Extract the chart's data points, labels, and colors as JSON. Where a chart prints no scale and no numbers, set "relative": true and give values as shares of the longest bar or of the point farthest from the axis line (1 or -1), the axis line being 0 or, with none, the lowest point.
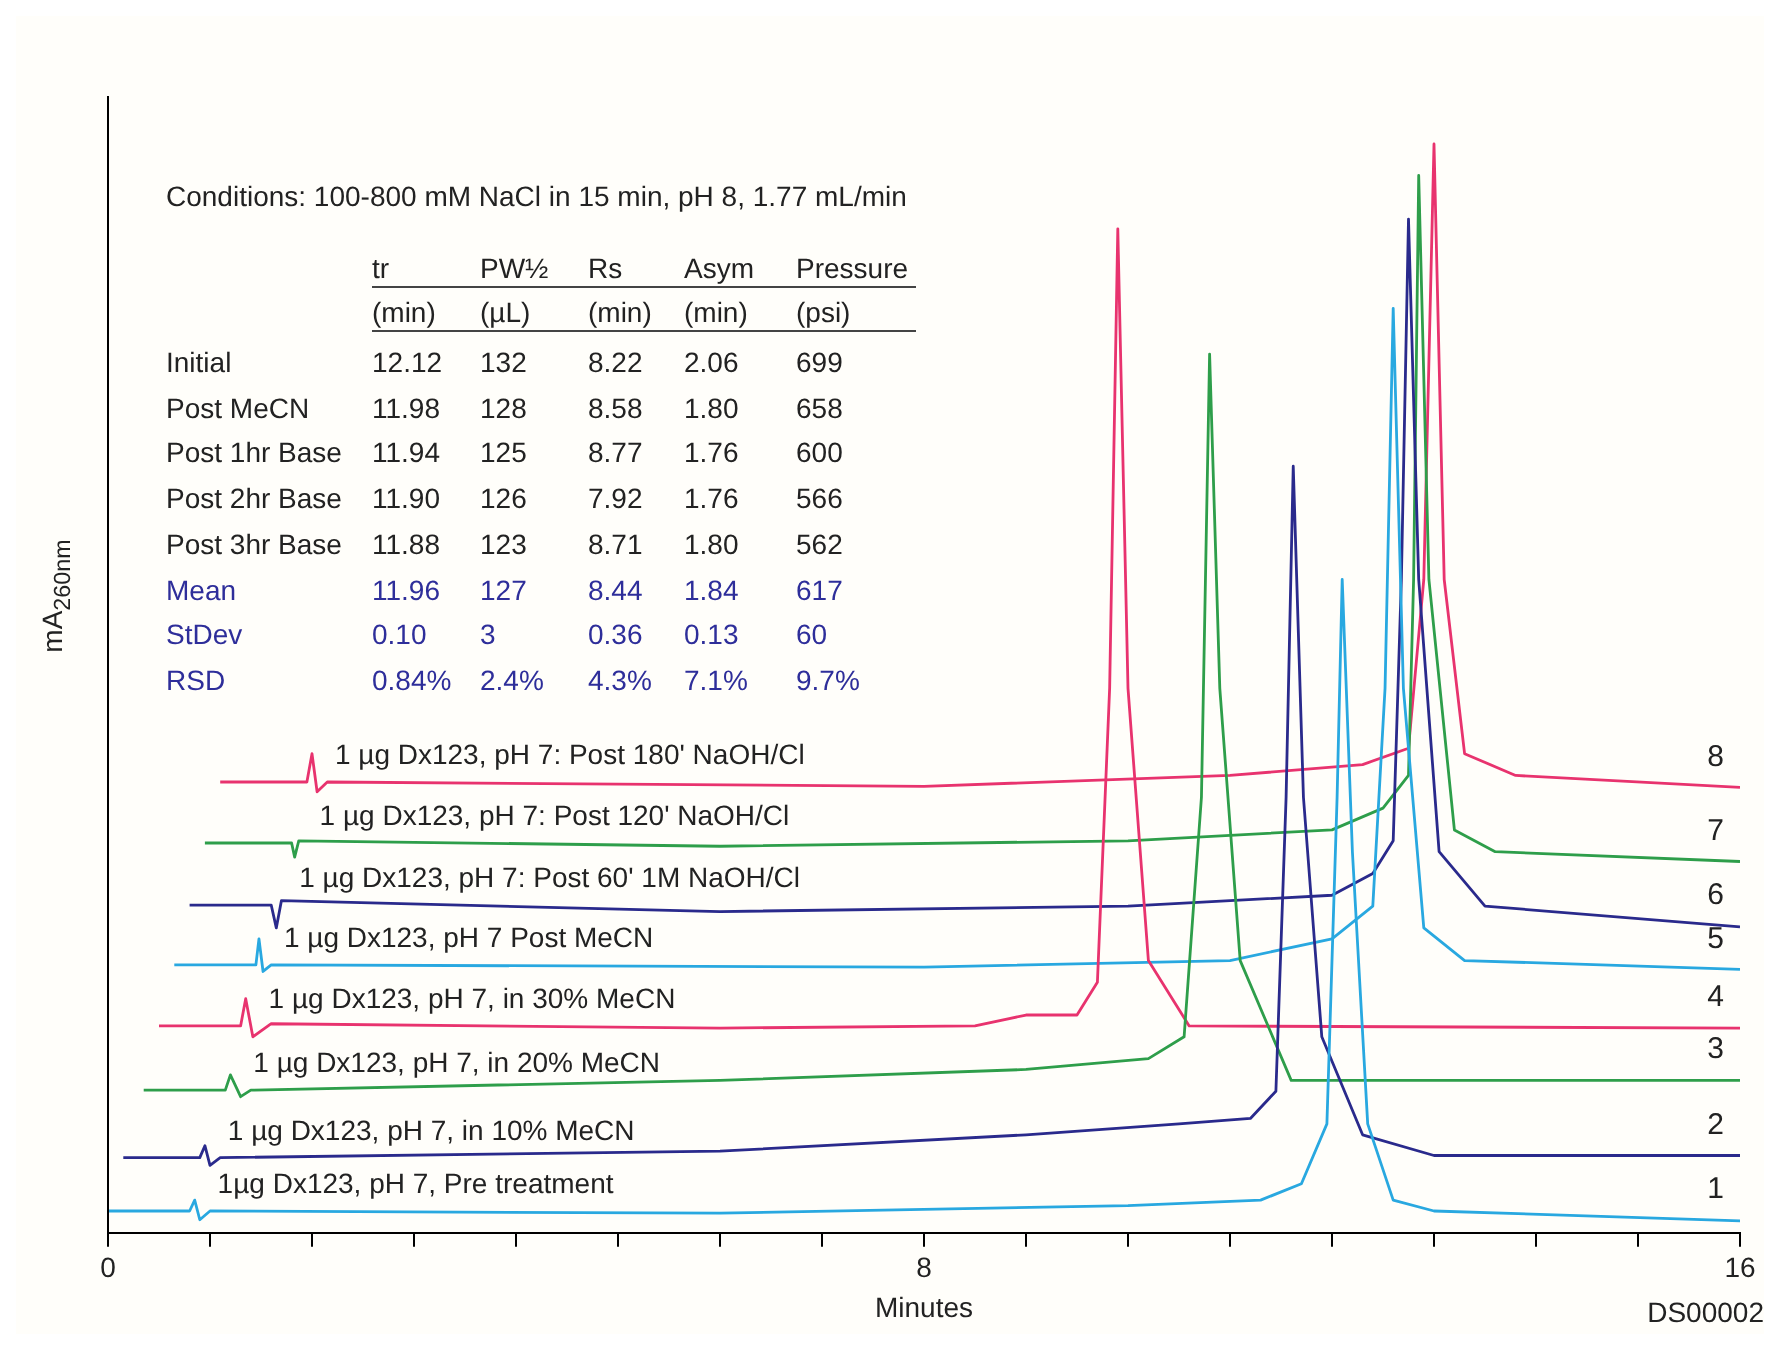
{
  "chart_data": {
    "type": "line",
    "relative": true,
    "xlabel": "Minutes",
    "ylabel": "mA$_{260nm}$",
    "xlim": [
      0,
      16
    ],
    "xticks": [
      0,
      {
        "value": 1,
        "label": null
      },
      {
        "value": 2,
        "label": null
      },
      {
        "value": 3,
        "label": null
      },
      {
        "value": 4,
        "label": null
      },
      {
        "value": 5,
        "label": null
      },
      {
        "value": 6,
        "label": null
      },
      {
        "value": 7,
        "label": null
      },
      8,
      {
        "value": 9,
        "label": null
      },
      {
        "value": 10,
        "label": null
      },
      {
        "value": 11,
        "label": null
      },
      {
        "value": 12,
        "label": null
      },
      {
        "value": 13,
        "label": null
      },
      {
        "value": 14,
        "label": null
      },
      {
        "value": 15,
        "label": null
      },
      16
    ],
    "grid": false,
    "legend": false,
    "marker": "none",
    "series": [
      {
        "name": "1µg Dx123, pH 7, Pre treatment",
        "color": "#29a8e0",
        "x": [
          0,
          0.8,
          0.85,
          0.9,
          1.0,
          6,
          10,
          11.3,
          11.7,
          11.95,
          12.05,
          12.1,
          12.2,
          12.35,
          12.6,
          13,
          16
        ],
        "values": [
          0.02,
          0.02,
          0.03,
          0.012,
          0.02,
          0.018,
          0.025,
          0.03,
          0.045,
          0.1,
          0.4,
          0.6,
          0.35,
          0.1,
          0.03,
          0.02,
          0.011
        ]
      },
      {
        "name": "1 µg Dx123, pH 7, in 10% MeCN",
        "color": "#2a2a8c",
        "x": [
          0.15,
          0.9,
          0.95,
          1.0,
          1.1,
          6,
          9,
          10.5,
          11.2,
          11.45,
          11.55,
          11.62,
          11.72,
          11.9,
          12.3,
          13,
          16
        ],
        "values": [
          0.069,
          0.069,
          0.08,
          0.062,
          0.069,
          0.075,
          0.09,
          0.1,
          0.105,
          0.13,
          0.4,
          0.704,
          0.4,
          0.18,
          0.09,
          0.071,
          0.071
        ]
      },
      {
        "name": "1 µg Dx123, pH 7, in 20% MeCN",
        "color": "#2e9e4a",
        "x": [
          0.35,
          1.15,
          1.2,
          1.3,
          1.4,
          6,
          9,
          10.2,
          10.55,
          10.72,
          10.8,
          10.9,
          11.1,
          11.6,
          16
        ],
        "values": [
          0.131,
          0.131,
          0.145,
          0.125,
          0.131,
          0.14,
          0.15,
          0.16,
          0.18,
          0.4,
          0.807,
          0.5,
          0.25,
          0.14,
          0.14
        ]
      },
      {
        "name": "1 µg Dx123, pH 7, in 30% MeCN",
        "color": "#e8336e",
        "x": [
          0.5,
          1.3,
          1.35,
          1.42,
          1.6,
          6,
          8.5,
          9.0,
          9.5,
          9.7,
          9.82,
          9.9,
          10.0,
          10.2,
          10.6,
          16
        ],
        "values": [
          0.19,
          0.19,
          0.215,
          0.18,
          0.192,
          0.188,
          0.19,
          0.2,
          0.2,
          0.23,
          0.5,
          0.922,
          0.5,
          0.25,
          0.19,
          0.188
        ]
      },
      {
        "name": "1 µg Dx123, pH 7 Post MeCN",
        "color": "#29a8e0",
        "x": [
          0.65,
          1.45,
          1.48,
          1.52,
          1.6,
          8,
          11,
          12,
          12.4,
          12.52,
          12.6,
          12.7,
          12.9,
          13.3,
          16
        ],
        "values": [
          0.246,
          0.246,
          0.27,
          0.24,
          0.246,
          0.244,
          0.25,
          0.27,
          0.3,
          0.5,
          0.849,
          0.5,
          0.28,
          0.25,
          0.242
        ]
      },
      {
        "name": "1 µg Dx123, pH 7: Post 60' 1M NaOH/Cl",
        "color": "#2a2a8c",
        "x": [
          0.8,
          1.6,
          1.65,
          1.7,
          6,
          10,
          12,
          12.4,
          12.6,
          12.68,
          12.75,
          12.85,
          13.05,
          13.5,
          16
        ],
        "values": [
          0.301,
          0.301,
          0.28,
          0.305,
          0.295,
          0.3,
          0.31,
          0.33,
          0.36,
          0.6,
          0.931,
          0.6,
          0.35,
          0.3,
          0.281
        ]
      },
      {
        "name": "1 µg Dx123, pH 7: Post 120' NaOH/Cl",
        "color": "#2e9e4a",
        "x": [
          0.95,
          1.8,
          1.83,
          1.87,
          6,
          10,
          12,
          12.5,
          12.75,
          12.8,
          12.85,
          12.95,
          13.2,
          13.6,
          16
        ],
        "values": [
          0.358,
          0.358,
          0.345,
          0.36,
          0.355,
          0.36,
          0.37,
          0.39,
          0.42,
          0.6,
          0.971,
          0.6,
          0.37,
          0.35,
          0.341
        ]
      },
      {
        "name": "1 µg Dx123, pH 7: Post 180' NaOH/Cl",
        "color": "#e8336e",
        "x": [
          1.1,
          1.95,
          2.0,
          2.05,
          2.15,
          8,
          11,
          12.3,
          12.75,
          12.9,
          13.0,
          13.1,
          13.3,
          13.8,
          16
        ],
        "values": [
          0.414,
          0.414,
          0.44,
          0.405,
          0.414,
          0.41,
          0.42,
          0.43,
          0.445,
          0.6,
          1,
          0.6,
          0.44,
          0.42,
          0.409
        ]
      }
    ],
    "annotations": [
      "Conditions: 100-800 mM NaCl in 15 min, pH 8, 1.77 mL/min",
      "tr",
      "PW½",
      "Rs",
      "Asym",
      "Pressure",
      "(min)",
      "(µL)",
      "(min)",
      "(min)",
      "(psi)",
      "Initial",
      "12.12",
      "132",
      "8.22",
      "2.06",
      "699",
      "Post MeCN",
      "11.98",
      "128",
      "8.58",
      "1.80",
      "658",
      "Post 1hr Base",
      "11.94",
      "125",
      "8.77",
      "1.76",
      "600",
      "Post 2hr Base",
      "11.90",
      "126",
      "7.92",
      "1.76",
      "566",
      "Post 3hr Base",
      "11.88",
      "123",
      "8.71",
      "1.80",
      "562",
      "Mean",
      "11.96",
      "127",
      "8.44",
      "1.84",
      "617",
      "StDev",
      "0.10",
      "3",
      "0.36",
      "0.13",
      "60",
      "RSD",
      "0.84%",
      "2.4%",
      "4.3%",
      "7.1%",
      "9.7%",
      "DS00002",
      "1",
      "2",
      "3",
      "4",
      "5",
      "6",
      "7",
      "8"
    ]
  }
}
